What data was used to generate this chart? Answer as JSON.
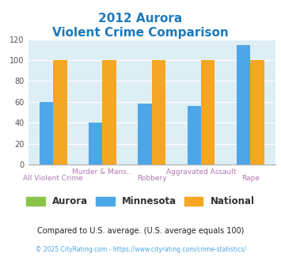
{
  "title_line1": "2012 Aurora",
  "title_line2": "Violent Crime Comparison",
  "title_color": "#1a7abf",
  "categories": [
    "All Violent Crime",
    "Murder & Mans...",
    "Robbery",
    "Aggravated Assault",
    "Rape"
  ],
  "cat_labels_top": [
    "",
    "Murder & Mans...",
    "",
    "Aggravated Assault",
    ""
  ],
  "cat_labels_bot": [
    "All Violent Crime",
    "",
    "Robbery",
    "",
    "Rape"
  ],
  "aurora_values": [
    0,
    0,
    0,
    0,
    0
  ],
  "minnesota_values": [
    60,
    40,
    58,
    56,
    114
  ],
  "national_values": [
    100,
    100,
    100,
    100,
    100
  ],
  "aurora_color": "#8bc34a",
  "minnesota_color": "#4da6e8",
  "national_color": "#f5a623",
  "ylim": [
    0,
    120
  ],
  "yticks": [
    0,
    20,
    40,
    60,
    80,
    100,
    120
  ],
  "bg_color": "#ddeef5",
  "legend_labels": [
    "Aurora",
    "Minnesota",
    "National"
  ],
  "footnote1": "Compared to U.S. average. (U.S. average equals 100)",
  "footnote1_color": "#222222",
  "footnote2": "© 2025 CityRating.com - https://www.cityrating.com/crime-statistics/",
  "footnote2_color": "#4da6e8",
  "label_color": "#b07ab0"
}
